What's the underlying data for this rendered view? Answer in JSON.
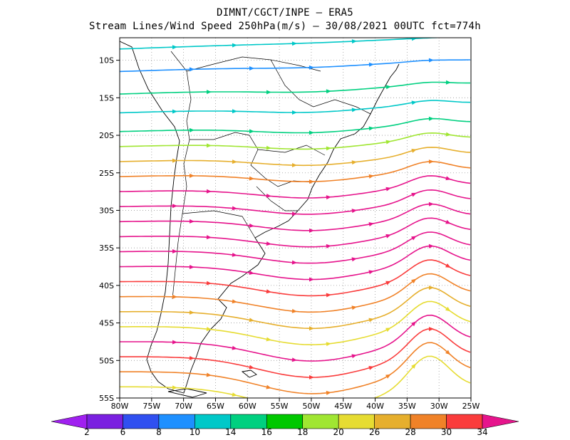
{
  "header": {
    "line1": "DIMNT/CGCT/INPE –  ERA5",
    "line2": "Stream Lines/Wind Speed 250hPa(m/s) –  30/08/2021 00UTC fct=774h"
  },
  "axes": {
    "lat_labels": [
      "10S",
      "15S",
      "20S",
      "25S",
      "30S",
      "35S",
      "40S",
      "45S",
      "50S",
      "55S"
    ],
    "lon_labels": [
      "80W",
      "75W",
      "70W",
      "65W",
      "60W",
      "55W",
      "50W",
      "45W",
      "40W",
      "35W",
      "30W",
      "25W"
    ]
  },
  "colorbar": {
    "labels": [
      "2",
      "6",
      "8",
      "10",
      "14",
      "16",
      "18",
      "20",
      "26",
      "28",
      "30",
      "34"
    ],
    "colors": [
      "#a020f0",
      "#7a20e0",
      "#3050f0",
      "#1e90ff",
      "#00c8c8",
      "#00d080",
      "#00c800",
      "#a0e632",
      "#e6dc32",
      "#e6af2d",
      "#f08228",
      "#fa3c3c",
      "#e6148c"
    ]
  },
  "streamlines": [
    {
      "lat": 8.5,
      "color": "#00c8c8"
    },
    {
      "lat": 11.5,
      "color": "#1e90ff"
    },
    {
      "lat": 14.5,
      "color": "#00d080"
    },
    {
      "lat": 17.0,
      "color": "#00c8c8"
    },
    {
      "lat": 19.5,
      "color": "#00d080"
    },
    {
      "lat": 21.5,
      "color": "#a0e632"
    },
    {
      "lat": 23.5,
      "color": "#e6af2d"
    },
    {
      "lat": 25.5,
      "color": "#f08228"
    },
    {
      "lat": 27.5,
      "color": "#e6148c"
    },
    {
      "lat": 29.5,
      "color": "#e6148c"
    },
    {
      "lat": 31.5,
      "color": "#e6148c"
    },
    {
      "lat": 33.5,
      "color": "#e6148c"
    },
    {
      "lat": 35.5,
      "color": "#e6148c"
    },
    {
      "lat": 37.5,
      "color": "#e6148c"
    },
    {
      "lat": 39.5,
      "color": "#fa3c3c"
    },
    {
      "lat": 41.5,
      "color": "#f08228"
    },
    {
      "lat": 43.5,
      "color": "#e6af2d"
    },
    {
      "lat": 45.5,
      "color": "#e6dc32"
    },
    {
      "lat": 47.5,
      "color": "#e6148c"
    },
    {
      "lat": 49.5,
      "color": "#fa3c3c"
    },
    {
      "lat": 51.5,
      "color": "#f08228"
    },
    {
      "lat": 53.5,
      "color": "#e6dc32"
    }
  ]
}
